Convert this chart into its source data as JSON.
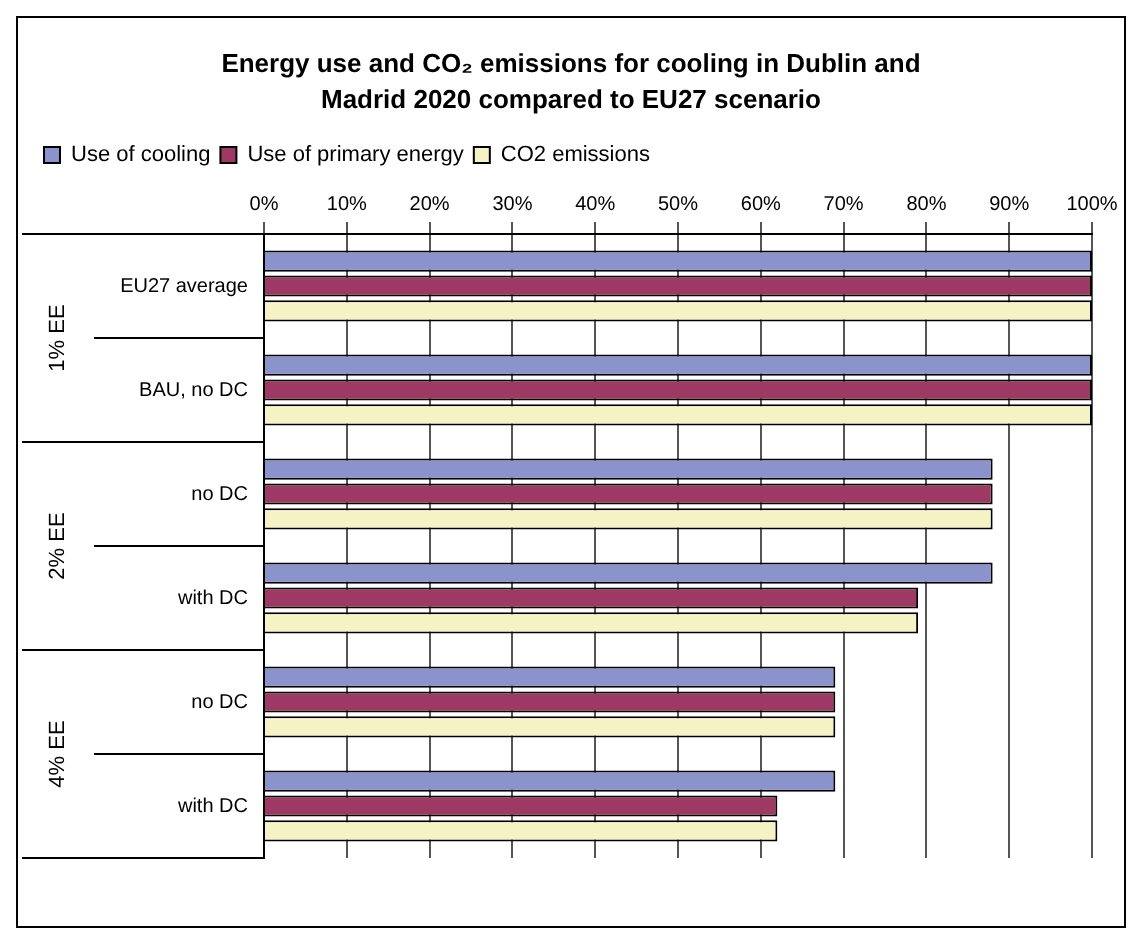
{
  "chart_data": {
    "type": "bar",
    "orientation": "horizontal",
    "title": "Energy use and CO₂ emissions for cooling in Dublin and Madrid 2020 compared to EU27 scenario",
    "categories": [
      "EU27 average",
      "BAU, no DC",
      "no DC",
      "with DC",
      "no DC",
      "with DC"
    ],
    "series": [
      {
        "name": "Use of cooling",
        "color": "#8b93cc",
        "values": [
          100,
          100,
          88,
          88,
          69,
          69
        ]
      },
      {
        "name": "Use of primary energy",
        "color": "#9e3864",
        "values": [
          100,
          100,
          88,
          79,
          69,
          62
        ]
      },
      {
        "name": "CO2 emissions",
        "color": "#f5f3c3",
        "values": [
          100,
          100,
          88,
          79,
          69,
          62
        ]
      }
    ],
    "xlim": [
      0,
      100
    ],
    "xticks": [
      {
        "value": 0,
        "label": "0%"
      },
      {
        "value": 10,
        "label": "10%"
      },
      {
        "value": 20,
        "label": "20%"
      },
      {
        "value": 30,
        "label": "30%"
      },
      {
        "value": 40,
        "label": "40%"
      },
      {
        "value": 50,
        "label": "50%"
      },
      {
        "value": 60,
        "label": "60%"
      },
      {
        "value": 70,
        "label": "70%"
      },
      {
        "value": 80,
        "label": "80%"
      },
      {
        "value": 90,
        "label": "90%"
      },
      {
        "value": 100,
        "label": "100%"
      }
    ],
    "annotations": [
      "1% EE",
      "2% EE",
      "4% EE"
    ],
    "grid": "x",
    "legend": "top left"
  }
}
